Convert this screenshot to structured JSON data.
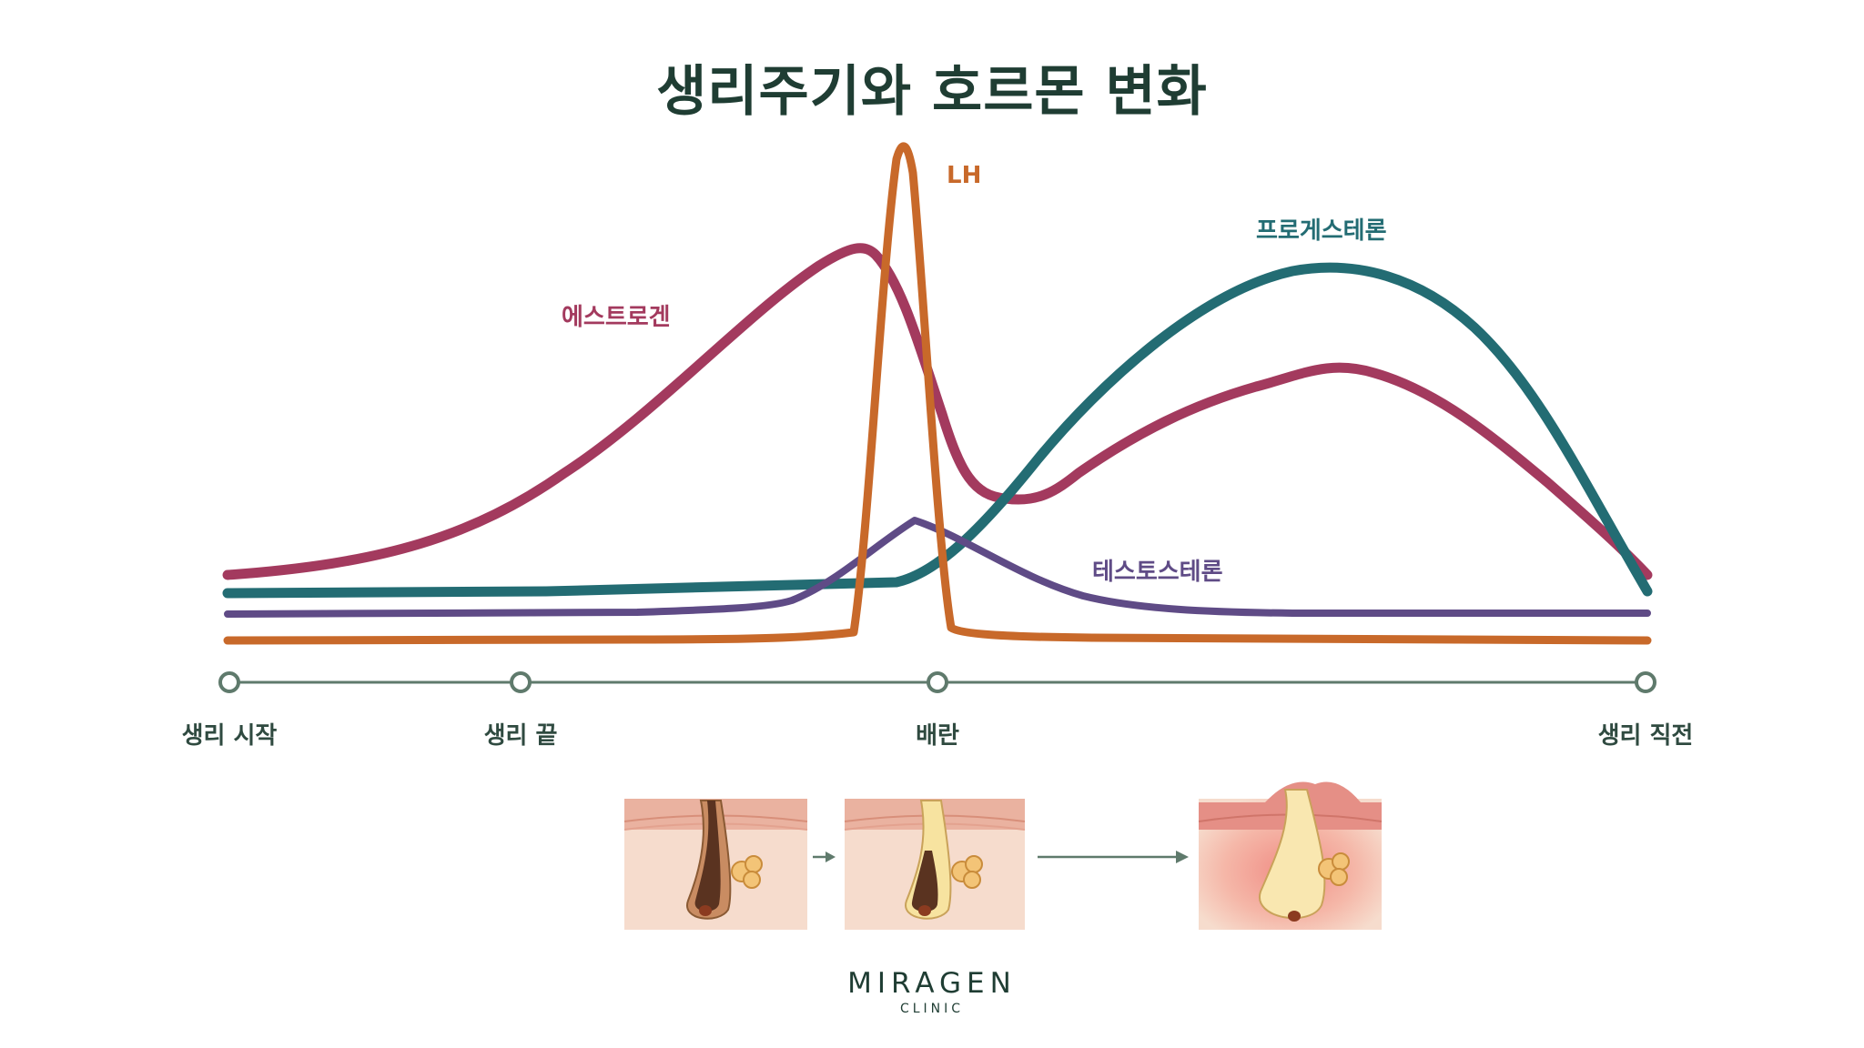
{
  "title": "생리주기와 호르몬 변화",
  "curves": {
    "estrogen": {
      "label": "에스트로겐",
      "color": "#a33a5e"
    },
    "lh": {
      "label": "LH",
      "color": "#c8692a"
    },
    "progesterone": {
      "label": "프로게스테론",
      "color": "#236c73"
    },
    "testosterone": {
      "label": "테스토스테론",
      "color": "#5f4b86"
    }
  },
  "timeline": {
    "color": "#5f7a6c",
    "points": [
      {
        "label": "생리 시작"
      },
      {
        "label": "생리 끝"
      },
      {
        "label": "배란"
      },
      {
        "label": "생리 직전"
      }
    ]
  },
  "illustrations": [
    {
      "name": "normal-follicle"
    },
    {
      "name": "clogged-follicle"
    },
    {
      "name": "inflamed-follicle"
    }
  ],
  "brand": {
    "name": "MIRAGEN",
    "sub": "CLINIC"
  }
}
